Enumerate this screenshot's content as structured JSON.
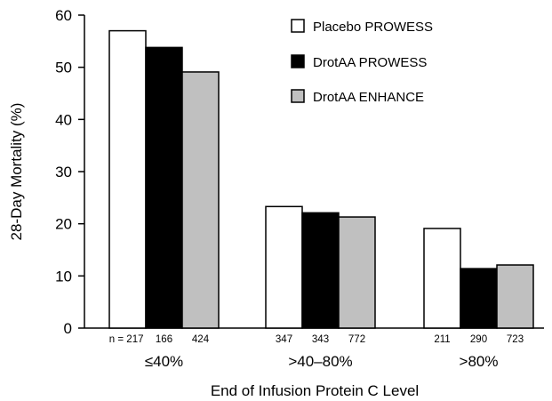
{
  "chart_data": {
    "type": "bar",
    "title": "",
    "xlabel": "End of Infusion Protein C Level",
    "ylabel": "28-Day Mortality (%)",
    "ylim": [
      0,
      60
    ],
    "yticks": [
      "0",
      "10",
      "20",
      "30",
      "40",
      "50",
      "60"
    ],
    "grid": false,
    "legend_position": "top-right",
    "categories": [
      "≤40%",
      ">40–80%",
      ">80%"
    ],
    "n_prefix": "n = ",
    "series": [
      {
        "name": "Placebo PROWESS",
        "color": "#ffffff",
        "values": [
          57,
          23.3,
          19.1
        ],
        "n": [
          "217",
          "347",
          "211"
        ]
      },
      {
        "name": "DrotAA PROWESS",
        "color": "#000000",
        "values": [
          53.8,
          22.1,
          11.4
        ],
        "n": [
          "166",
          "343",
          "290"
        ]
      },
      {
        "name": "DrotAA ENHANCE",
        "color": "#c0c0c0",
        "values": [
          49.1,
          21.3,
          12.1
        ],
        "n": [
          "424",
          "772",
          "723"
        ]
      }
    ]
  }
}
